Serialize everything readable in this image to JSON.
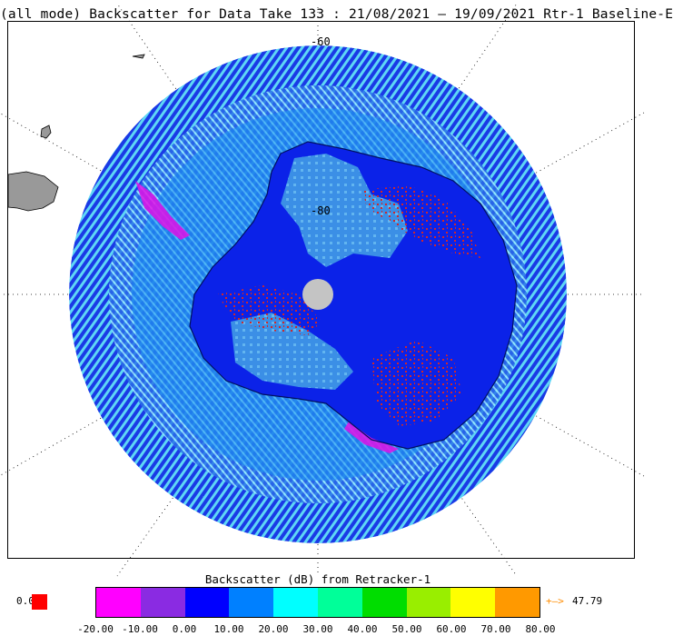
{
  "title": "(all mode) Backscatter for Data Take 133 : 21/08/2021 – 19/09/2021 Rtr-1 Baseline-E",
  "map": {
    "lat_labels": [
      "-60",
      "-80"
    ],
    "colors": {
      "ocean_ring": "#0a14e6",
      "ocean_light": "#4fd3f2",
      "ocean_mid": "#1a8ff0",
      "ice_sheet_blue": "#0b22e8",
      "ice_light": "#3a9ae8",
      "ice_red": "#d1282a",
      "coast_magenta": "#e012e6",
      "pole_hole": "#c4c4c4",
      "land_gray": "#999999"
    }
  },
  "legend": {
    "title": "Backscatter (dB) from Retracker-1",
    "colors": [
      "#ff00ff",
      "#8a2be2",
      "#0000ff",
      "#0080ff",
      "#00ffff",
      "#00ff99",
      "#00dd00",
      "#99ee00",
      "#ffff00",
      "#ff9900"
    ],
    "ticks": [
      "-20.00",
      "-10.00",
      "0.00",
      "10.00",
      "20.00",
      "30.00",
      "40.00",
      "50.00",
      "60.00",
      "70.00",
      "80.00"
    ],
    "zero_label": "0.0",
    "zero_color": "#ff0000",
    "overflow_arrow": "+–>",
    "overflow_value": "47.79"
  }
}
